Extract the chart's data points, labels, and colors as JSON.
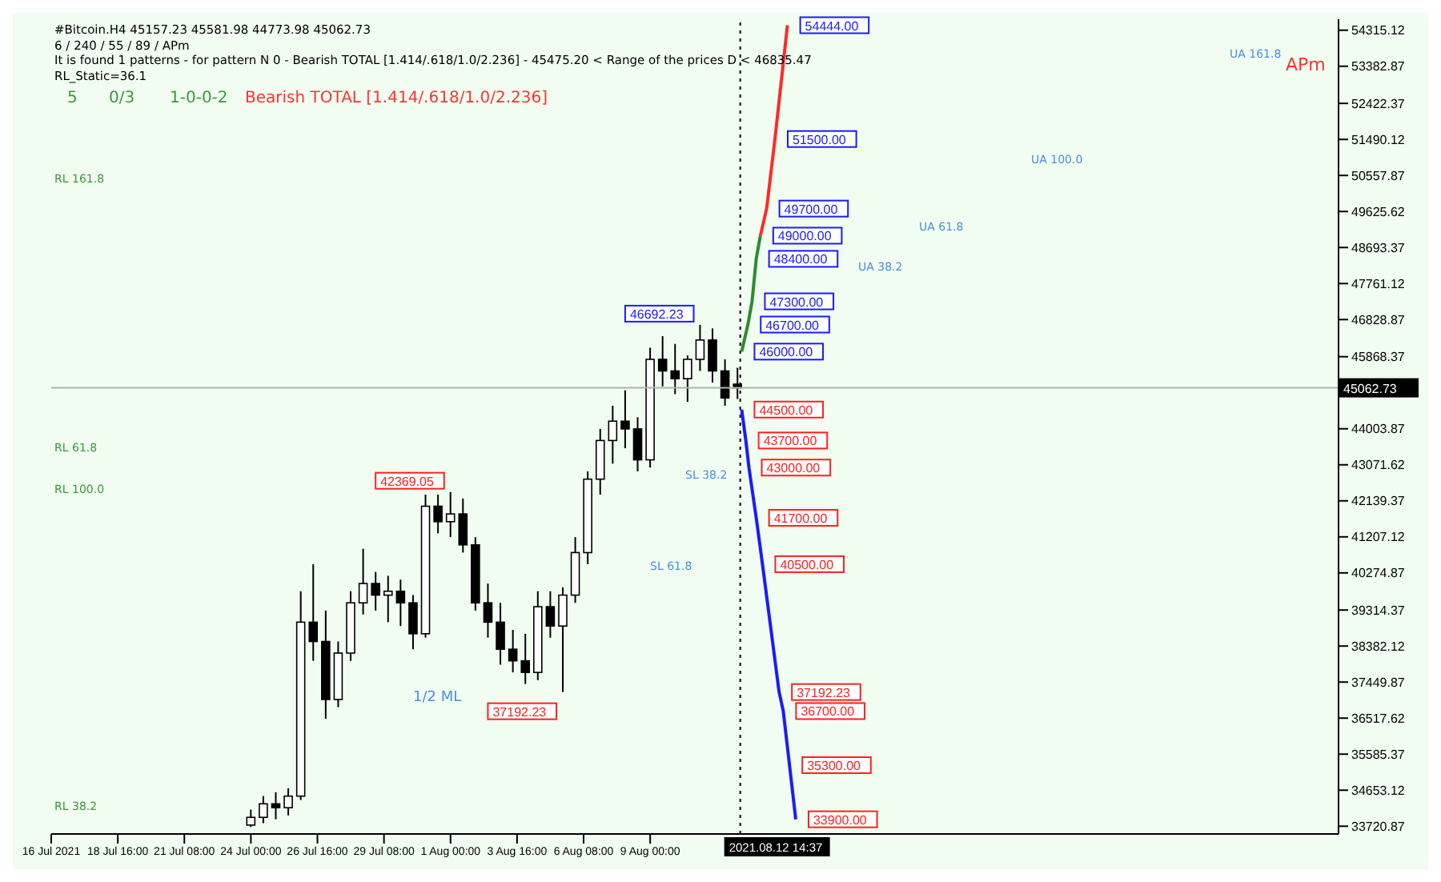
{
  "chart_data": {
    "type": "candlestick",
    "title": "#Bitcoin.H4  45157.23 45581.98 44773.98 45062.73",
    "subtitle": "6 / 240 / 55 / 89 / APm",
    "x": [
      "2021-07-24T00:00",
      "2021-07-24T12:00",
      "2021-07-25T00:00",
      "2021-07-25T12:00",
      "2021-07-26T00:00",
      "2021-07-26T12:00",
      "2021-07-27T00:00",
      "2021-07-27T12:00",
      "2021-07-28T00:00",
      "2021-07-28T12:00",
      "2021-07-29T00:00",
      "2021-07-29T12:00",
      "2021-07-30T00:00",
      "2021-07-30T12:00",
      "2021-07-31T00:00",
      "2021-07-31T12:00",
      "2021-08-01T00:00",
      "2021-08-01T12:00",
      "2021-08-02T00:00",
      "2021-08-02T12:00",
      "2021-08-03T00:00",
      "2021-08-03T12:00",
      "2021-08-04T00:00",
      "2021-08-04T12:00",
      "2021-08-05T00:00",
      "2021-08-05T12:00",
      "2021-08-06T00:00",
      "2021-08-06T12:00",
      "2021-08-07T00:00",
      "2021-08-07T12:00",
      "2021-08-08T00:00",
      "2021-08-08T12:00",
      "2021-08-09T00:00",
      "2021-08-09T12:00",
      "2021-08-10T00:00",
      "2021-08-10T12:00",
      "2021-08-11T00:00",
      "2021-08-11T12:00",
      "2021-08-12T00:00",
      "2021-08-12T12:00"
    ],
    "ohlc": [
      [
        33750,
        34150,
        33700,
        33950
      ],
      [
        33950,
        34500,
        33800,
        34300
      ],
      [
        34300,
        34600,
        33900,
        34200
      ],
      [
        34200,
        34700,
        34000,
        34500
      ],
      [
        34500,
        39800,
        34400,
        39000
      ],
      [
        39000,
        40500,
        38000,
        38500
      ],
      [
        38500,
        39300,
        36500,
        37000
      ],
      [
        37000,
        38500,
        36800,
        38200
      ],
      [
        38200,
        39800,
        38000,
        39500
      ],
      [
        39500,
        40900,
        39200,
        40000
      ],
      [
        40000,
        40300,
        39300,
        39700
      ],
      [
        39700,
        40200,
        39000,
        39800
      ],
      [
        39800,
        40100,
        38900,
        39500
      ],
      [
        39500,
        39700,
        38300,
        38700
      ],
      [
        38700,
        42300,
        38600,
        42000
      ],
      [
        42000,
        42300,
        41300,
        41600
      ],
      [
        41600,
        42369.05,
        41200,
        41800
      ],
      [
        41800,
        42200,
        40800,
        41000
      ],
      [
        41000,
        41200,
        39300,
        39500
      ],
      [
        39500,
        40000,
        38600,
        39000
      ],
      [
        39000,
        39500,
        37900,
        38300
      ],
      [
        38300,
        38800,
        37700,
        38000
      ],
      [
        38000,
        38700,
        37400,
        37700
      ],
      [
        37700,
        39800,
        37500,
        39400
      ],
      [
        39400,
        39800,
        38600,
        38900
      ],
      [
        38900,
        39900,
        37192.23,
        39700
      ],
      [
        39700,
        41200,
        39500,
        40800
      ],
      [
        40800,
        42900,
        40500,
        42700
      ],
      [
        42700,
        44000,
        42300,
        43700
      ],
      [
        43700,
        44600,
        43100,
        44200
      ],
      [
        44200,
        45000,
        43500,
        44000
      ],
      [
        44000,
        44300,
        42900,
        43200
      ],
      [
        43200,
        46100,
        43000,
        45800
      ],
      [
        45800,
        46400,
        45100,
        45500
      ],
      [
        45500,
        46200,
        44900,
        45300
      ],
      [
        45300,
        45900,
        44700,
        45800
      ],
      [
        45800,
        46692.23,
        45500,
        46300
      ],
      [
        46300,
        46600,
        45200,
        45500
      ],
      [
        45500,
        45800,
        44600,
        44800
      ],
      [
        45157.23,
        45581.98,
        44773.98,
        45062.73
      ]
    ],
    "series": [
      {
        "type": "line",
        "color": "#2e8b2e",
        "x": [
          "2021-08-12T16:00",
          "2021-08-12T22:00",
          "2021-08-13T02:00",
          "2021-08-13T06:00",
          "2021-08-13T10:00"
        ],
        "values": [
          46000,
          46700,
          47300,
          48400,
          49000
        ]
      },
      {
        "type": "line",
        "color": "#ff2a2a",
        "x": [
          "2021-08-13T10:00",
          "2021-08-13T16:00",
          "2021-08-14T00:00",
          "2021-08-14T12:00"
        ],
        "values": [
          49000,
          49700,
          51500,
          54444
        ]
      },
      {
        "type": "line",
        "color": "#1a1aff",
        "x": [
          "2021-08-12T16:00",
          "2021-08-12T20:00",
          "2021-08-12T23:00",
          "2021-08-13T06:00",
          "2021-08-13T12:00",
          "2021-08-14T04:00",
          "2021-08-14T08:00",
          "2021-08-14T14:00",
          "2021-08-14T20:00"
        ],
        "values": [
          44500,
          43700,
          43000,
          41700,
          40500,
          37192.23,
          36700,
          35300,
          33900
        ]
      }
    ],
    "xlim": [
      "2021-07-16T00:00",
      "2021-09-05T14:00"
    ],
    "xticks": [
      {
        "value": "2021-07-16T00:00",
        "label": "16 Jul 2021"
      },
      {
        "value": "2021-07-18T16:00",
        "label": "18 Jul 16:00"
      },
      {
        "value": "2021-07-21T08:00",
        "label": "21 Jul 08:00"
      },
      {
        "value": "2021-07-24T00:00",
        "label": "24 Jul 00:00"
      },
      {
        "value": "2021-07-26T16:00",
        "label": "26 Jul 16:00"
      },
      {
        "value": "2021-07-29T08:00",
        "label": "29 Jul 08:00"
      },
      {
        "value": "2021-08-01T00:00",
        "label": "1 Aug 00:00"
      },
      {
        "value": "2021-08-03T16:00",
        "label": "3 Aug 16:00"
      },
      {
        "value": "2021-08-06T08:00",
        "label": "6 Aug 08:00"
      },
      {
        "value": "2021-08-09T00:00",
        "label": "9 Aug 00:00"
      }
    ],
    "ylim": [
      33520,
      54600
    ],
    "yticks": [
      33720.87,
      34653.12,
      35585.37,
      36517.62,
      37449.87,
      38382.12,
      39314.37,
      40274.87,
      41207.12,
      42139.37,
      43071.62,
      44003.87,
      45868.37,
      46828.87,
      47761.12,
      48693.37,
      49625.62,
      50557.87,
      51490.12,
      52422.37,
      53382.87,
      54315.12
    ],
    "grid": false,
    "ref_lines": [
      {
        "axis": "y",
        "value": 45062.73,
        "label": "45062.73",
        "color": "#b0b0b0"
      },
      {
        "axis": "x",
        "value": "2021-08-12T14:37",
        "label": "2021.08.12 14:37",
        "color": "#000000",
        "line_style": "dotted"
      }
    ],
    "annotations": [
      "It is found 1 patterns  -  for pattern N 0 - Bearish TOTAL [1.414/.618/1.0/2.236] - 45475.20 < Range of the prices D < 46835.47",
      "RL_Static=36.1",
      "5",
      "0/3",
      "1-0-0-2",
      "Bearish TOTAL [1.414/.618/1.0/2.236]",
      "APm",
      "UA 161.8",
      "UA 100.0",
      "UA 61.8",
      "UA 38.2",
      "RL 161.8",
      "RL 61.8",
      "RL 100.0",
      "RL 38.2",
      "SL 38.2",
      "SL 61.8",
      "1/2 ML",
      {
        "text": "46692.23",
        "x": "2021-08-11T00:00",
        "y": 46692.23
      },
      {
        "text": "42369.05",
        "x": "2021-08-01T00:00",
        "y": 42369.05
      },
      {
        "text": "37192.23",
        "x": "2021-08-05T12:00",
        "y": 37192.23
      },
      {
        "text": "54444.00",
        "x": "2021-08-14T12:00",
        "y": 54444
      },
      {
        "text": "51500.00",
        "x": "2021-08-14T00:00",
        "y": 51500
      },
      {
        "text": "49700.00",
        "x": "2021-08-13T16:00",
        "y": 49700
      },
      {
        "text": "49000.00",
        "x": "2021-08-13T10:00",
        "y": 49000
      },
      {
        "text": "48400.00",
        "x": "2021-08-13T06:00",
        "y": 48400
      },
      {
        "text": "47300.00",
        "x": "2021-08-13T02:00",
        "y": 47300
      },
      {
        "text": "46700.00",
        "x": "2021-08-12T22:00",
        "y": 46700
      },
      {
        "text": "46000.00",
        "x": "2021-08-12T16:00",
        "y": 46000
      },
      {
        "text": "44500.00",
        "x": "2021-08-12T16:00",
        "y": 44500
      },
      {
        "text": "43700.00",
        "x": "2021-08-12T20:00",
        "y": 43700
      },
      {
        "text": "43000.00",
        "x": "2021-08-12T23:00",
        "y": 43000
      },
      {
        "text": "41700.00",
        "x": "2021-08-13T06:00",
        "y": 41700
      },
      {
        "text": "40500.00",
        "x": "2021-08-13T12:00",
        "y": 40500
      },
      {
        "text": "37192.23",
        "x": "2021-08-14T04:00",
        "y": 37192.23
      },
      {
        "text": "36700.00",
        "x": "2021-08-14T08:00",
        "y": 36700
      },
      {
        "text": "35300.00",
        "x": "2021-08-14T14:00",
        "y": 35300
      },
      {
        "text": "33900.00",
        "x": "2021-08-14T20:00",
        "y": 33900
      }
    ]
  }
}
